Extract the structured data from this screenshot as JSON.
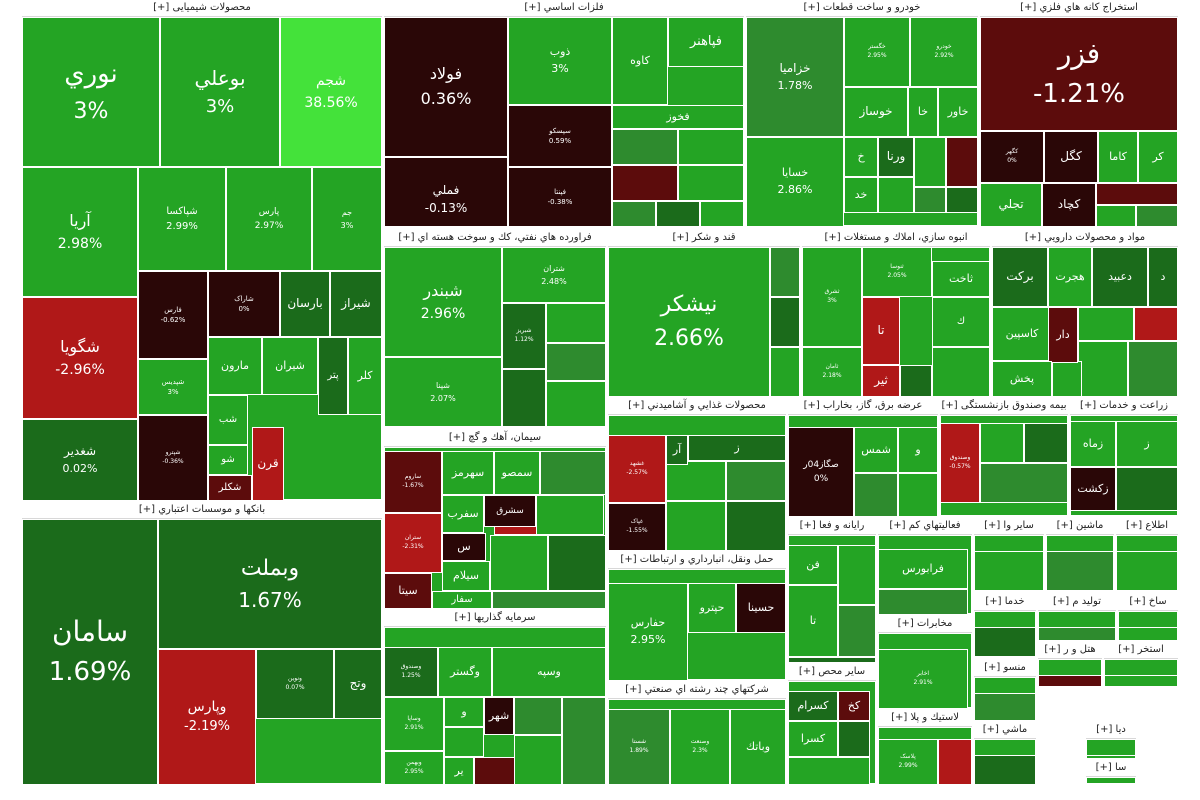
{
  "chart_data": {
    "type": "treemap",
    "title": "Market map",
    "colors": {
      "dark_green": "#1b6b1b",
      "green": "#24a424",
      "mid_green": "#2e8b2e",
      "bright_green": "#44e23a",
      "dark_red": "#5c0c0c",
      "red": "#b01818",
      "darkest": "#2a0707"
    },
    "sectors": [
      {
        "name": "محصولات شیمیایی [+]",
        "tiles": [
          {
            "name": "نوري",
            "value": "3%",
            "change": 3.0
          },
          {
            "name": "بوعلي",
            "value": "3%",
            "change": 3.0
          },
          {
            "name": "شجم",
            "value": "38.56%",
            "change": 38.56
          },
          {
            "name": "آريا",
            "value": "2.98%",
            "change": 2.98
          },
          {
            "name": "شپاكسا",
            "value": "2.99%",
            "change": 2.99
          },
          {
            "name": "پارس",
            "value": "2.97%",
            "change": 2.97
          },
          {
            "name": "جم",
            "value": "3%",
            "change": 3.0
          },
          {
            "name": "شگويا",
            "value": "-2.96%",
            "change": -2.96
          },
          {
            "name": "شغدير",
            "value": "0.02%",
            "change": 0.02
          },
          {
            "name": "فارس",
            "value": "-0.62%",
            "change": -0.62
          },
          {
            "name": "شاراک",
            "value": "0%",
            "change": 0.0
          },
          {
            "name": "بارسان",
            "value": "",
            "change": 1.5
          },
          {
            "name": "شيراز",
            "value": "",
            "change": 1.2
          },
          {
            "name": "شپديس",
            "value": "3%",
            "change": 3.0
          },
          {
            "name": "مارون",
            "value": "",
            "change": 2.1
          },
          {
            "name": "شيران",
            "value": "",
            "change": 2.4
          },
          {
            "name": "پتر",
            "value": "",
            "change": 1.0
          },
          {
            "name": "كلر",
            "value": "",
            "change": 2.2
          },
          {
            "name": "شپترو",
            "value": "-0.36%",
            "change": -0.36
          },
          {
            "name": "شب",
            "value": "",
            "change": 2.5
          },
          {
            "name": "شو",
            "value": "",
            "change": 2.0
          },
          {
            "name": "شكلر",
            "value": "",
            "change": -0.5
          },
          {
            "name": "قرن",
            "value": "",
            "change": -1.8
          }
        ]
      },
      {
        "name": "بانكها و موسسات اعتباري [+]",
        "tiles": [
          {
            "name": "سامان",
            "value": "1.69%",
            "change": 1.69
          },
          {
            "name": "وبملت",
            "value": "1.67%",
            "change": 1.67
          },
          {
            "name": "وپارس",
            "value": "-2.19%",
            "change": -2.19
          },
          {
            "name": "ونوين",
            "value": "0.07%",
            "change": 0.07
          },
          {
            "name": "وتج",
            "value": "",
            "change": 1.1
          }
        ]
      },
      {
        "name": "فلزات اساسي [+]",
        "tiles": [
          {
            "name": "فولاد",
            "value": "0.36%",
            "change": 0.36
          },
          {
            "name": "فملي",
            "value": "-0.13%",
            "change": -0.13
          },
          {
            "name": "ذوب",
            "value": "3%",
            "change": 3.0
          },
          {
            "name": "كاوه",
            "value": "",
            "change": 0.8
          },
          {
            "name": "فپاهنر",
            "value": "",
            "change": 2.5
          },
          {
            "name": "فخوز",
            "value": "",
            "change": 2.7
          },
          {
            "name": "سپسکو",
            "value": "0.59%",
            "change": 0.59
          },
          {
            "name": "فپنتا",
            "value": "-0.38%",
            "change": -0.38
          }
        ]
      },
      {
        "name": "خودرو و ساخت قطعات [+]",
        "tiles": [
          {
            "name": "خزاميا",
            "value": "1.78%",
            "change": 1.78
          },
          {
            "name": "خسايا",
            "value": "2.86%",
            "change": 2.86
          },
          {
            "name": "خگستر",
            "value": "2.95%",
            "change": 2.95
          },
          {
            "name": "خودرو",
            "value": "2.92%",
            "change": 2.92
          },
          {
            "name": "خوساز",
            "value": "",
            "change": 2.6
          },
          {
            "name": "خا",
            "value": "",
            "change": 2.4
          },
          {
            "name": "خاور",
            "value": "",
            "change": 2.3
          },
          {
            "name": "ورنا",
            "value": "",
            "change": 0.9
          },
          {
            "name": "خ",
            "value": "",
            "change": 2.1
          },
          {
            "name": "خد",
            "value": "",
            "change": 2.2
          }
        ]
      },
      {
        "name": "استخراج كانه هاي فلزي [+]",
        "tiles": [
          {
            "name": "فزر",
            "value": "-1.21%",
            "change": -1.21
          },
          {
            "name": "کگهر",
            "value": "0%",
            "change": 0.0
          },
          {
            "name": "كگل",
            "value": "",
            "change": -0.7
          },
          {
            "name": "كاما",
            "value": "",
            "change": 2.6
          },
          {
            "name": "کر",
            "value": "",
            "change": 2.4
          },
          {
            "name": "تجلي",
            "value": "",
            "change": 1.2
          },
          {
            "name": "كچاد",
            "value": "",
            "change": -0.9
          }
        ]
      },
      {
        "name": "فراورده هاي نفتي، كك و سوخت هسته اي [+]",
        "tiles": [
          {
            "name": "شبندر",
            "value": "2.96%",
            "change": 2.96
          },
          {
            "name": "شتران",
            "value": "2.48%",
            "change": 2.48
          },
          {
            "name": "شپنا",
            "value": "2.07%",
            "change": 2.07
          },
          {
            "name": "شبریز",
            "value": "1.12%",
            "change": 1.12
          }
        ]
      },
      {
        "name": "قند و شكر [+]",
        "tiles": [
          {
            "name": "نيشكر",
            "value": "2.66%",
            "change": 2.66
          }
        ]
      },
      {
        "name": "انبوه سازي، املاك و مستغلات [+]",
        "tiles": [
          {
            "name": "ثاخت",
            "value": "",
            "change": 2.6
          },
          {
            "name": "ثنوسا",
            "value": "2.05%",
            "change": 2.05
          },
          {
            "name": "ثشرق",
            "value": "3%",
            "change": 3.0
          },
          {
            "name": "ثامان",
            "value": "2.18%",
            "change": 2.18
          },
          {
            "name": "تا",
            "value": "",
            "change": -1.5
          },
          {
            "name": "ك",
            "value": "",
            "change": 1.8
          },
          {
            "name": "ثير",
            "value": "",
            "change": -1.2
          }
        ]
      },
      {
        "name": "مواد و محصولات دارويي [+]",
        "tiles": [
          {
            "name": "بركت",
            "value": "",
            "change": 1.3
          },
          {
            "name": "هجرت",
            "value": "",
            "change": 2.4
          },
          {
            "name": "دعبيد",
            "value": "",
            "change": 2.6
          },
          {
            "name": "د",
            "value": "",
            "change": 2.5
          },
          {
            "name": "كاسپين",
            "value": "",
            "change": 2.7
          },
          {
            "name": "دار",
            "value": "",
            "change": 1.4
          },
          {
            "name": "پخش",
            "value": "",
            "change": 2.8
          }
        ]
      },
      {
        "name": "سيمان، آهك و گچ [+]",
        "tiles": [
          {
            "name": "ساروم",
            "value": "-1.67%",
            "change": -1.67
          },
          {
            "name": "سهرمز",
            "value": "",
            "change": 2.3
          },
          {
            "name": "سمصو",
            "value": "",
            "change": 2.6
          },
          {
            "name": "سشرق",
            "value": "",
            "change": 2.5
          },
          {
            "name": "ستران",
            "value": "-2.31%",
            "change": -2.31
          },
          {
            "name": "سفرب",
            "value": "",
            "change": 2.4
          },
          {
            "name": "س",
            "value": "",
            "change": -0.8
          },
          {
            "name": "سيلام",
            "value": "",
            "change": 2.5
          },
          {
            "name": "سيتا",
            "value": "",
            "change": -1.0
          },
          {
            "name": "سفار",
            "value": "",
            "change": 1.2
          }
        ]
      },
      {
        "name": "محصولات غذايي و آشاميدني [+]",
        "tiles": [
          {
            "name": "غشهد",
            "value": "-2.57%",
            "change": -2.57
          },
          {
            "name": "غپاک",
            "value": "-1.55%",
            "change": -1.55
          },
          {
            "name": "آر",
            "value": "",
            "change": 1.0
          },
          {
            "name": "ز",
            "value": "",
            "change": 1.3
          }
        ]
      },
      {
        "name": "عرضه برق، گاز، بخاراب [+]",
        "tiles": [
          {
            "name": "صگاز04ر",
            "value": "0%",
            "change": 0.0
          },
          {
            "name": "شمس",
            "value": "",
            "change": 2.4
          },
          {
            "name": "و",
            "value": "",
            "change": 2.2
          }
        ]
      },
      {
        "name": "بيمه وصندوق بازنشستگی [+]",
        "tiles": [
          {
            "name": "وصندوق",
            "value": "-0.57%",
            "change": -0.57
          }
        ]
      },
      {
        "name": "زراعت و خدمات [+]",
        "tiles": [
          {
            "name": "زماه",
            "value": "",
            "change": 2.2
          },
          {
            "name": "زكشت",
            "value": "",
            "change": 1.6
          },
          {
            "name": "ز",
            "value": "",
            "change": 2.5
          }
        ]
      },
      {
        "name": "سرمايه گذاريها [+]",
        "tiles": [
          {
            "name": "وسپه",
            "value": "",
            "change": 2.6
          },
          {
            "name": "وگستر",
            "value": "",
            "change": 2.4
          },
          {
            "name": "وصندوق",
            "value": "1.25%",
            "change": 1.25
          },
          {
            "name": "وساپا",
            "value": "2.91%",
            "change": 2.91
          },
          {
            "name": "وبهمن",
            "value": "2.95%",
            "change": 2.95
          },
          {
            "name": "شهر",
            "value": "",
            "change": -0.6
          },
          {
            "name": "و",
            "value": "",
            "change": 2.1
          },
          {
            "name": "ير",
            "value": "",
            "change": 1.9
          }
        ]
      },
      {
        "name": "حمل ونقل، انبارداري و ارتباطات [+]",
        "tiles": [
          {
            "name": "حفارس",
            "value": "2.95%",
            "change": 2.95
          },
          {
            "name": "حسينا",
            "value": "",
            "change": 1.3
          },
          {
            "name": "حپترو",
            "value": "",
            "change": 2.4
          }
        ]
      },
      {
        "name": "شركتهاي چند رشته اي صنعتي [+]",
        "tiles": [
          {
            "name": "شستا",
            "value": "1.89%",
            "change": 1.89
          },
          {
            "name": "وصنعت",
            "value": "2.3%",
            "change": 2.3
          },
          {
            "name": "وباتك",
            "value": "",
            "change": 2.4
          }
        ]
      },
      {
        "name": "رايانه و فعا [+]",
        "tiles": [
          {
            "name": "فن",
            "value": "",
            "change": 2.2
          },
          {
            "name": "تا",
            "value": "",
            "change": 2.4
          }
        ]
      },
      {
        "name": "فعاليتهاي كم [+]",
        "tiles": [
          {
            "name": "فرابورس",
            "value": "",
            "change": 2.5
          }
        ]
      },
      {
        "name": "سایر محص [+]",
        "tiles": [
          {
            "name": "كسرام",
            "value": "",
            "change": 1.2
          },
          {
            "name": "كخ",
            "value": "",
            "change": -0.8
          },
          {
            "name": "كسرا",
            "value": "",
            "change": 2.4
          }
        ]
      },
      {
        "name": "مخابرات [+]",
        "tiles": [
          {
            "name": "اخابر",
            "value": "2.91%",
            "change": 2.91
          }
        ]
      },
      {
        "name": "لاستيك و پلا [+]",
        "tiles": [
          {
            "name": "پلاسک",
            "value": "2.99%",
            "change": 2.99
          }
        ]
      },
      {
        "name": "ساير وا [+]",
        "tiles": []
      },
      {
        "name": "ماشين [+]",
        "tiles": []
      },
      {
        "name": "اطلاع [+]",
        "tiles": []
      },
      {
        "name": "خدما [+]",
        "tiles": []
      },
      {
        "name": "توليد م [+]",
        "tiles": []
      },
      {
        "name": "ساخ [+]",
        "tiles": []
      },
      {
        "name": "هتل و ر [+]",
        "tiles": []
      },
      {
        "name": "استخر [+]",
        "tiles": []
      },
      {
        "name": "منسو [+]",
        "tiles": []
      },
      {
        "name": "ماشي [+]",
        "tiles": []
      },
      {
        "name": "ديا [+]",
        "tiles": []
      },
      {
        "name": "سا [+]",
        "tiles": []
      }
    ]
  }
}
